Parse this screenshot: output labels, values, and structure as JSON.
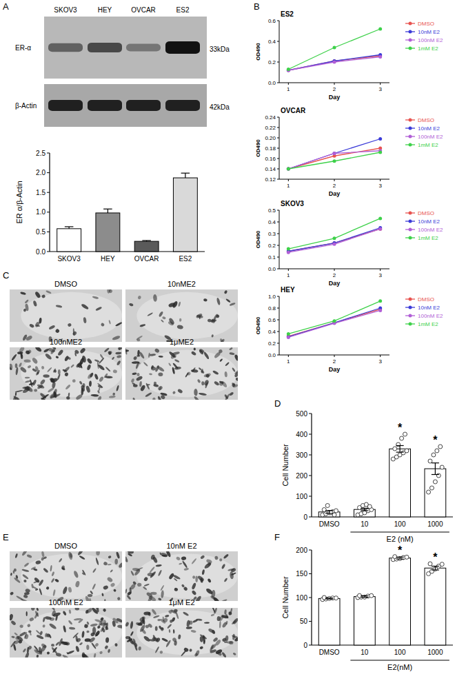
{
  "panel_labels": [
    "A",
    "B",
    "C",
    "D",
    "E",
    "F"
  ],
  "blot": {
    "cell_lines": [
      "SKOV3",
      "HEY",
      "OVCAR",
      "ES2"
    ],
    "bands": [
      {
        "label": "ER-α",
        "size": "33kDa"
      },
      {
        "label": "β-Actin",
        "size": "42kDa"
      }
    ]
  },
  "micrographs_c": {
    "labels": [
      "DMSO",
      "10nME2",
      "100nME2",
      "1μME2"
    ]
  },
  "micrographs_e": {
    "labels": [
      "DMSO",
      "10nM E2",
      "100nM E2",
      "1μM E2"
    ]
  },
  "chart_data": [
    {
      "type": "bar",
      "categories": [
        "SKOV3",
        "HEY",
        "OVCAR",
        "ES2"
      ],
      "values": [
        0.58,
        0.98,
        0.26,
        1.87
      ],
      "errors": [
        0.05,
        0.1,
        0.02,
        0.12
      ],
      "colors": [
        "#ffffff",
        "#8c8c8c",
        "#5a5a5a",
        "#d9d9d9"
      ],
      "y_label": "ER α/β-Actin",
      "ylim": [
        0,
        2.5
      ],
      "yticks": [
        {
          "value": 0,
          "label": "0.0"
        },
        0.5,
        {
          "value": 1,
          "label": "1.0"
        },
        1.5,
        {
          "value": 2,
          "label": "2.0"
        },
        2.5
      ]
    },
    {
      "type": "line",
      "title": "ES2",
      "x": [
        1,
        2,
        3
      ],
      "xlim": [
        0.8,
        3.2
      ],
      "xticks": [
        1,
        2,
        3
      ],
      "x_label": "Day",
      "y_label": "OD490",
      "ylim": [
        0,
        0.6
      ],
      "yticks": [
        {
          "value": 0,
          "label": "0.0"
        },
        0.2,
        0.4,
        0.6
      ],
      "legend": "right",
      "marker": "circle",
      "series": [
        {
          "name": "DMSO",
          "color": "#e8534f",
          "values": [
            0.12,
            0.21,
            0.26
          ]
        },
        {
          "name": "10nM E2",
          "color": "#3b3bd8",
          "values": [
            0.12,
            0.21,
            0.27
          ]
        },
        {
          "name": "100nM E2",
          "color": "#b15fd6",
          "values": [
            0.12,
            0.2,
            0.25
          ]
        },
        {
          "name": "1mM E2",
          "color": "#3ed14a",
          "values": [
            0.13,
            0.34,
            0.52
          ]
        }
      ]
    },
    {
      "type": "line",
      "title": "OVCAR",
      "x": [
        1,
        2,
        3
      ],
      "xlim": [
        0.8,
        3.2
      ],
      "xticks": [
        1,
        2,
        3
      ],
      "x_label": "Day",
      "y_label": "OD490",
      "ylim": [
        0.12,
        0.24
      ],
      "yticks": [
        0.12,
        0.14,
        0.16,
        0.18,
        {
          "value": 0.2,
          "label": "0.20"
        },
        0.22,
        0.24
      ],
      "legend": "right",
      "marker": "circle",
      "series": [
        {
          "name": "DMSO",
          "color": "#e8534f",
          "values": [
            0.14,
            0.165,
            0.18
          ]
        },
        {
          "name": "10nM E2",
          "color": "#3b3bd8",
          "values": [
            0.14,
            0.17,
            0.198
          ]
        },
        {
          "name": "100nM E2",
          "color": "#b15fd6",
          "values": [
            0.14,
            0.17,
            0.175
          ]
        },
        {
          "name": "1mM E2",
          "color": "#3ed14a",
          "values": [
            0.14,
            0.155,
            0.172
          ]
        }
      ]
    },
    {
      "type": "line",
      "title": "SKOV3",
      "x": [
        1,
        2,
        3
      ],
      "xlim": [
        0.8,
        3.2
      ],
      "xticks": [
        1,
        2,
        3
      ],
      "x_label": "Day",
      "y_label": "OD490",
      "ylim": [
        0,
        0.5
      ],
      "yticks": [
        {
          "value": 0,
          "label": "0.0"
        },
        0.1,
        0.2,
        0.3,
        0.4,
        0.5
      ],
      "legend": "right",
      "marker": "circle",
      "series": [
        {
          "name": "DMSO",
          "color": "#e8534f",
          "values": [
            0.15,
            0.22,
            0.34
          ]
        },
        {
          "name": "10nM E2",
          "color": "#3b3bd8",
          "values": [
            0.15,
            0.22,
            0.35
          ]
        },
        {
          "name": "100nM E2",
          "color": "#b15fd6",
          "values": [
            0.14,
            0.21,
            0.34
          ]
        },
        {
          "name": "1mM E2",
          "color": "#3ed14a",
          "values": [
            0.17,
            0.26,
            0.43
          ]
        }
      ]
    },
    {
      "type": "line",
      "title": "HEY",
      "x": [
        1,
        2,
        3
      ],
      "xlim": [
        0.8,
        3.2
      ],
      "xticks": [
        1,
        2,
        3
      ],
      "x_label": "Day",
      "y_label": "OD490",
      "ylim": [
        0,
        1
      ],
      "yticks": [
        {
          "value": 0,
          "label": "0.0"
        },
        0.2,
        0.4,
        0.6,
        0.8,
        {
          "value": 1,
          "label": "1.0"
        }
      ],
      "legend": "right",
      "marker": "circle",
      "series": [
        {
          "name": "DMSO",
          "color": "#e8534f",
          "values": [
            0.32,
            0.55,
            0.78
          ]
        },
        {
          "name": "10nM E2",
          "color": "#3b3bd8",
          "values": [
            0.31,
            0.55,
            0.8
          ]
        },
        {
          "name": "100nM E2",
          "color": "#b15fd6",
          "values": [
            0.3,
            0.54,
            0.76
          ]
        },
        {
          "name": "1mM E2",
          "color": "#3ed14a",
          "values": [
            0.36,
            0.58,
            0.92
          ]
        }
      ]
    },
    {
      "type": "bar",
      "categories": [
        "DMSO",
        "10",
        "100",
        "1000"
      ],
      "values": [
        24,
        36,
        329,
        233
      ],
      "errors": [
        7,
        6,
        16,
        28
      ],
      "points": [
        [
          10,
          15,
          20,
          25,
          30,
          35,
          55,
          20,
          10
        ],
        [
          10,
          15,
          20,
          30,
          35,
          45,
          55,
          60,
          50
        ],
        [
          280,
          290,
          300,
          310,
          320,
          330,
          350,
          380,
          400
        ],
        [
          120,
          140,
          170,
          200,
          240,
          270,
          300,
          320,
          340
        ]
      ],
      "color": "#ffffff",
      "x_label": "E2 (nM)",
      "y_label": "Cell Number",
      "ylim": [
        0,
        500
      ],
      "yticks": [
        0,
        100,
        200,
        300,
        400,
        500
      ],
      "annotations": [
        {
          "category": "100",
          "text": "*"
        },
        {
          "category": "1000",
          "text": "*"
        }
      ]
    },
    {
      "type": "bar",
      "categories": [
        "DMSO",
        "10",
        "100",
        "1000"
      ],
      "values": [
        98,
        102,
        183,
        162
      ],
      "errors": [
        1,
        1.5,
        2,
        4
      ],
      "points": [
        [
          96,
          97,
          98,
          99,
          99,
          100
        ],
        [
          100,
          101,
          101,
          103,
          104,
          104
        ],
        [
          180,
          181,
          182,
          184,
          185,
          186
        ],
        [
          150,
          155,
          160,
          166,
          170,
          171
        ]
      ],
      "color": "#ffffff",
      "x_label": "E2(nM)",
      "y_label": "Cell Number",
      "ylim": [
        0,
        200
      ],
      "yticks": [
        0,
        50,
        100,
        150,
        200
      ],
      "annotations": [
        {
          "category": "100",
          "text": "*"
        },
        {
          "category": "1000",
          "text": "*"
        }
      ]
    }
  ]
}
